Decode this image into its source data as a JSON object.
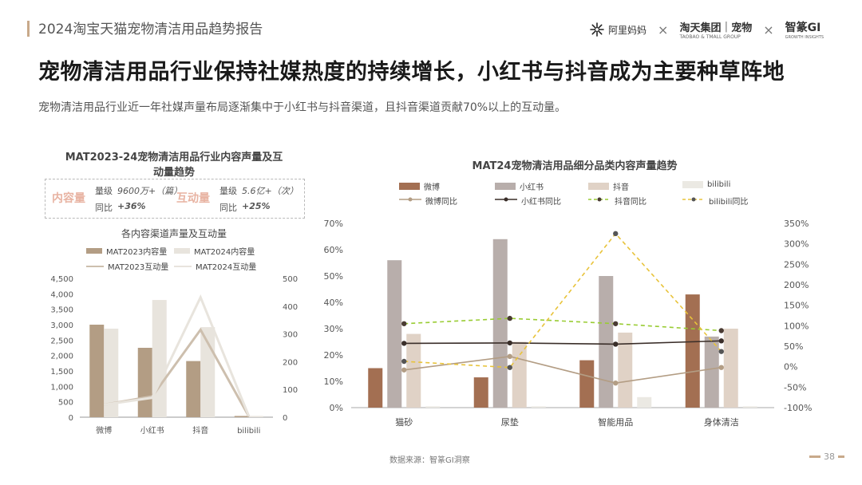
{
  "header": {
    "report_title": "2024淘宝天猫宠物清洁用品趋势报告",
    "logo_alimama": "阿里妈妈",
    "logo_taotian": "淘天集团",
    "logo_taotian_sub": "TAOBAO & TMALL GROUP",
    "logo_pet": "宠物",
    "logo_zhimeng": "智篆GI",
    "logo_zhimeng_sub": "GROWTH INSIGHTS",
    "separator": "×",
    "icon_alimama": "asterisk-logo-icon"
  },
  "headline": "宠物清洁用品行业保持社媒热度的持续增长，小红书与抖音成为主要种草阵地",
  "subtitle": "宠物清洁用品行业近一年社媒声量布局逐渐集中于小红书与抖音渠道，且抖音渠道贡献70%以上的互动量。",
  "left_panel": {
    "title_line1": "MAT2023-24宠物清洁用品行业内容声量及互",
    "title_line2": "动量趋势",
    "summary": {
      "content_label": "内容量",
      "content_level_label": "量级",
      "content_level_value": "9600万+（篇）",
      "content_yoy_label": "同比",
      "content_yoy_value": "+36%",
      "interact_label": "互动量",
      "interact_level_label": "量级",
      "interact_level_value": "5.6亿+（次）",
      "interact_yoy_label": "同比",
      "interact_yoy_value": "+25%"
    },
    "chart_subtitle": "各内容渠道声量及互动量"
  },
  "right_panel": {
    "title": "MAT24宠物清洁用品细分品类内容声量趋势"
  },
  "colors": {
    "accent": "#c8a98a",
    "weibo": "#a36f52",
    "xiaohongshu": "#b8aeab",
    "douyin": "#e0d2c6",
    "bilibili": "#ebe9e3",
    "mat2023_bar": "#b39d84",
    "mat2024_bar": "#e8e4dd",
    "mat2023_line": "#cdbfae",
    "mat2024_line": "#e8e4dd",
    "weibo_yoy": "#b39d84",
    "xiaohongshu_yoy": "#3a2e29",
    "douyin_yoy": "#99cc33",
    "bilibili_yoy": "#e8c33a"
  },
  "chart_data": [
    {
      "type": "bar",
      "categories": [
        "微博",
        "小红书",
        "抖音",
        "bilibili"
      ],
      "series": [
        {
          "name": "MAT2023内容量",
          "kind": "bar",
          "axis": "left",
          "values": [
            3000,
            2250,
            1820,
            40
          ]
        },
        {
          "name": "MAT2024内容量",
          "kind": "bar",
          "axis": "left",
          "values": [
            2870,
            3800,
            2920,
            40
          ]
        },
        {
          "name": "MAT2023互动量",
          "kind": "line",
          "axis": "right",
          "values": [
            45,
            75,
            315,
            3
          ]
        },
        {
          "name": "MAT2024互动量",
          "kind": "line",
          "axis": "right",
          "values": [
            45,
            70,
            432,
            4
          ]
        }
      ],
      "yticks_left": [
        "0",
        "500",
        "1,000",
        "1,500",
        "2,000",
        "2,500",
        "3,000",
        "3,500",
        "4,000",
        "4,500"
      ],
      "yticks_right": [
        "0",
        "100",
        "200",
        "300",
        "400",
        "500"
      ],
      "ylim_left": [
        0,
        4500
      ],
      "ylim_right": [
        0,
        500
      ],
      "grid": false,
      "legend_position": "top"
    },
    {
      "type": "bar",
      "categories": [
        "猫砂",
        "尿垫",
        "智能用品",
        "身体清洁"
      ],
      "series": [
        {
          "name": "微博",
          "kind": "bar",
          "axis": "left",
          "values": [
            15,
            11.5,
            18,
            43
          ]
        },
        {
          "name": "小红书",
          "kind": "bar",
          "axis": "left",
          "values": [
            56,
            64,
            50,
            27
          ]
        },
        {
          "name": "抖音",
          "kind": "bar",
          "axis": "left",
          "values": [
            28,
            25,
            28.5,
            30
          ]
        },
        {
          "name": "bilibili",
          "kind": "bar",
          "axis": "left",
          "values": [
            0.5,
            0.5,
            4,
            0.5
          ]
        },
        {
          "name": "微博同比",
          "kind": "line",
          "axis": "right",
          "values": [
            -8,
            25,
            -40,
            -2
          ]
        },
        {
          "name": "小红书同比",
          "kind": "line",
          "axis": "right",
          "values": [
            57,
            58,
            55,
            63
          ]
        },
        {
          "name": "抖音同比",
          "kind": "line",
          "axis": "right",
          "values": [
            105,
            118,
            105,
            88
          ]
        },
        {
          "name": "bilibili同比",
          "kind": "line",
          "axis": "right",
          "values": [
            13,
            -2,
            325,
            37
          ]
        }
      ],
      "yticks_left": [
        "0%",
        "10%",
        "20%",
        "30%",
        "40%",
        "50%",
        "60%",
        "70%"
      ],
      "yticks_right": [
        "-100%",
        "-50%",
        "0%",
        "50%",
        "100%",
        "150%",
        "200%",
        "250%",
        "300%",
        "350%"
      ],
      "ylim_left": [
        0,
        70
      ],
      "ylim_right": [
        -100,
        350
      ],
      "grid": false,
      "legend_position": "top"
    }
  ],
  "footer": {
    "source": "数据来源：智篆GI洞察",
    "page_number": "38"
  }
}
